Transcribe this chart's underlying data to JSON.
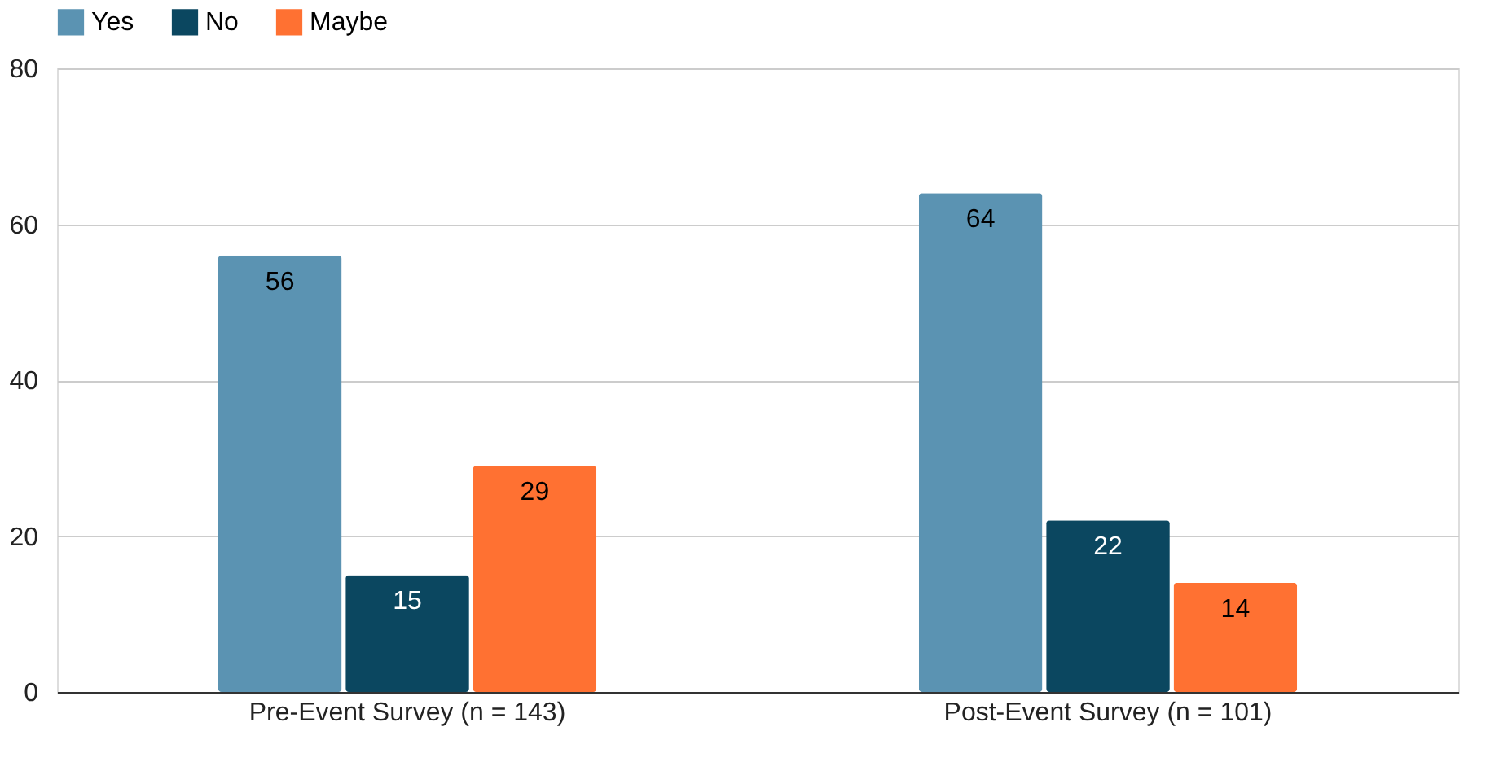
{
  "chart_data": {
    "type": "bar",
    "categories": [
      "Pre-Event Survey (n = 143)",
      "Post-Event Survey (n = 101)"
    ],
    "series": [
      {
        "name": "Yes",
        "color": "#5b93b2",
        "values": [
          56,
          64
        ]
      },
      {
        "name": "No",
        "color": "#0b4760",
        "values": [
          15,
          22
        ]
      },
      {
        "name": "Maybe",
        "color": "#ff7132",
        "values": [
          29,
          14
        ]
      }
    ],
    "ylim": [
      0,
      80
    ],
    "yticks": [
      0,
      20,
      40,
      60,
      80
    ],
    "grid": "y",
    "legend": "top",
    "data_labels": true
  }
}
